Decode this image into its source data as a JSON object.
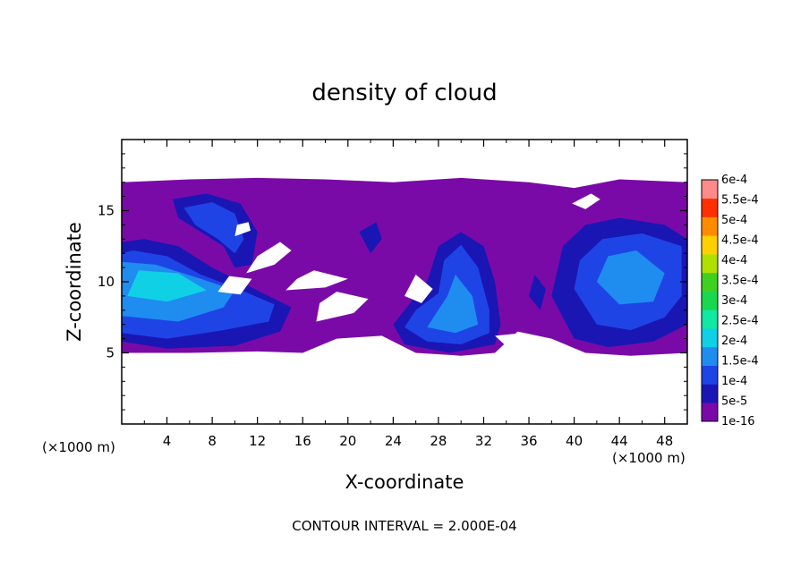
{
  "chart_data": {
    "type": "heatmap",
    "title": "density of cloud",
    "xlabel": "X-coordinate",
    "ylabel": "Z-coordinate",
    "x_unit": "(×1000 m)",
    "y_unit": "(×1000 m)",
    "xlim": [
      0,
      50
    ],
    "ylim": [
      0,
      20
    ],
    "x_ticks": [
      4,
      8,
      12,
      16,
      20,
      24,
      28,
      32,
      36,
      40,
      44,
      48
    ],
    "y_ticks": [
      5,
      10,
      15
    ],
    "grid": false,
    "contour_interval_text": "CONTOUR INTERVAL = 2.000E-04",
    "colorbar": {
      "placement": "right",
      "levels": [
        {
          "label": "1e-16",
          "color": "#7a0aa8"
        },
        {
          "label": "5e-5",
          "color": "#1a16b4"
        },
        {
          "label": "1e-4",
          "color": "#1f44e6"
        },
        {
          "label": "1.5e-4",
          "color": "#1f8cf0"
        },
        {
          "label": "2e-4",
          "color": "#10d0e6"
        },
        {
          "label": "2.5e-4",
          "color": "#10e8a4"
        },
        {
          "label": "3e-4",
          "color": "#18d850"
        },
        {
          "label": "3.5e-4",
          "color": "#40d020"
        },
        {
          "label": "4e-4",
          "color": "#b0e000"
        },
        {
          "label": "4.5e-4",
          "color": "#ffd000"
        },
        {
          "label": "5e-4",
          "color": "#ff8c00"
        },
        {
          "label": "5.5e-4",
          "color": "#ff3000"
        },
        {
          "label": "6e-4",
          "color": "#ff8a8a"
        }
      ]
    },
    "cloud_regions": [
      {
        "level": 0,
        "points": [
          [
            0,
            5
          ],
          [
            6,
            5
          ],
          [
            12,
            5.1
          ],
          [
            16,
            5
          ],
          [
            19,
            6
          ],
          [
            23,
            6.2
          ],
          [
            26,
            5
          ],
          [
            30,
            4.8
          ],
          [
            33,
            5
          ],
          [
            35,
            6.5
          ],
          [
            38,
            6
          ],
          [
            41,
            5
          ],
          [
            45,
            4.8
          ],
          [
            50,
            5
          ],
          [
            50,
            17
          ],
          [
            44,
            17.2
          ],
          [
            40,
            16.6
          ],
          [
            36,
            17
          ],
          [
            30,
            17.3
          ],
          [
            24,
            17
          ],
          [
            18,
            17.2
          ],
          [
            12,
            17.3
          ],
          [
            6,
            17.2
          ],
          [
            0,
            17
          ]
        ]
      },
      {
        "level": 1,
        "points": [
          [
            0,
            5.8
          ],
          [
            4,
            5.3
          ],
          [
            10,
            5.5
          ],
          [
            14,
            6.5
          ],
          [
            15,
            8.2
          ],
          [
            11,
            9.8
          ],
          [
            8,
            11
          ],
          [
            5,
            12.5
          ],
          [
            2,
            13
          ],
          [
            0,
            12.8
          ]
        ]
      },
      {
        "level": 2,
        "points": [
          [
            0,
            6.4
          ],
          [
            4,
            6
          ],
          [
            9,
            6.6
          ],
          [
            13,
            7.2
          ],
          [
            13.5,
            8.4
          ],
          [
            10,
            9.6
          ],
          [
            7,
            10.5
          ],
          [
            4,
            11.8
          ],
          [
            1,
            12.2
          ],
          [
            0,
            12
          ]
        ]
      },
      {
        "level": 3,
        "points": [
          [
            0,
            7.6
          ],
          [
            5,
            7.2
          ],
          [
            9,
            8.2
          ],
          [
            10,
            9.4
          ],
          [
            7,
            10.2
          ],
          [
            3,
            11.2
          ],
          [
            0,
            11.4
          ]
        ]
      },
      {
        "level": 4,
        "points": [
          [
            0.5,
            9
          ],
          [
            4,
            8.6
          ],
          [
            7.5,
            9.4
          ],
          [
            5,
            10.6
          ],
          [
            1.5,
            10.8
          ]
        ]
      },
      {
        "level": 1,
        "points": [
          [
            4.5,
            15.8
          ],
          [
            7.5,
            16.2
          ],
          [
            10.5,
            15.5
          ],
          [
            12,
            13.5
          ],
          [
            11.5,
            11.2
          ],
          [
            10,
            11
          ],
          [
            9,
            12.5
          ],
          [
            7,
            13.5
          ],
          [
            5,
            14.5
          ]
        ]
      },
      {
        "level": 2,
        "points": [
          [
            5.5,
            15.2
          ],
          [
            8,
            15.6
          ],
          [
            10,
            14.8
          ],
          [
            10.8,
            13
          ],
          [
            10,
            12
          ],
          [
            8.5,
            13
          ],
          [
            6.5,
            14
          ]
        ]
      },
      {
        "level": 1,
        "points": [
          [
            24,
            7
          ],
          [
            25,
            5.6
          ],
          [
            29,
            5
          ],
          [
            33,
            5.6
          ],
          [
            33.5,
            7
          ],
          [
            33,
            10
          ],
          [
            32,
            12.5
          ],
          [
            30,
            13.5
          ],
          [
            28,
            12.5
          ],
          [
            27,
            10
          ],
          [
            25,
            8
          ]
        ]
      },
      {
        "level": 2,
        "points": [
          [
            25,
            6.8
          ],
          [
            27,
            5.8
          ],
          [
            30,
            5.6
          ],
          [
            32.5,
            6.4
          ],
          [
            32.5,
            8
          ],
          [
            31.5,
            11
          ],
          [
            30,
            12.6
          ],
          [
            28.5,
            11.5
          ],
          [
            28,
            9.2
          ],
          [
            26,
            8
          ]
        ]
      },
      {
        "level": 3,
        "points": [
          [
            27,
            6.8
          ],
          [
            29.5,
            6.4
          ],
          [
            31.5,
            7
          ],
          [
            31,
            9
          ],
          [
            29.5,
            10.5
          ],
          [
            28.8,
            9
          ]
        ]
      },
      {
        "level": 1,
        "points": [
          [
            38,
            9
          ],
          [
            40,
            6
          ],
          [
            43,
            5.4
          ],
          [
            47,
            5.8
          ],
          [
            50,
            7
          ],
          [
            50,
            13
          ],
          [
            48,
            14
          ],
          [
            44,
            14.5
          ],
          [
            41,
            14
          ],
          [
            39,
            12.5
          ]
        ]
      },
      {
        "level": 2,
        "points": [
          [
            40,
            9.5
          ],
          [
            42,
            7
          ],
          [
            45,
            6.6
          ],
          [
            48,
            7.5
          ],
          [
            49.5,
            9
          ],
          [
            49.5,
            12.5
          ],
          [
            46,
            13.4
          ],
          [
            42.5,
            13
          ],
          [
            40.5,
            11.5
          ]
        ]
      },
      {
        "level": 3,
        "points": [
          [
            42,
            10
          ],
          [
            44,
            8.4
          ],
          [
            47,
            8.6
          ],
          [
            48,
            10.6
          ],
          [
            45.5,
            12.2
          ],
          [
            43,
            11.8
          ]
        ]
      },
      {
        "level": 1,
        "points": [
          [
            21,
            13.5
          ],
          [
            22,
            12
          ],
          [
            23,
            13
          ],
          [
            22.5,
            14.2
          ]
        ]
      },
      {
        "level": 1,
        "points": [
          [
            36,
            9
          ],
          [
            37,
            8
          ],
          [
            37.5,
            9.5
          ],
          [
            36.5,
            10.5
          ]
        ]
      }
    ],
    "clear_regions": [
      [
        [
          8.5,
          9.3
        ],
        [
          10.5,
          9.1
        ],
        [
          11.5,
          10.2
        ],
        [
          9.5,
          10.4
        ]
      ],
      [
        [
          11,
          10.6
        ],
        [
          13.5,
          11.2
        ],
        [
          15,
          12.2
        ],
        [
          14,
          12.8
        ],
        [
          12,
          11.8
        ]
      ],
      [
        [
          14.5,
          9.4
        ],
        [
          18,
          9.6
        ],
        [
          20,
          10.2
        ],
        [
          17,
          10.8
        ],
        [
          15.5,
          10.2
        ]
      ],
      [
        [
          17.2,
          7.2
        ],
        [
          20.5,
          7.8
        ],
        [
          21.8,
          8.8
        ],
        [
          19,
          9.3
        ],
        [
          17.5,
          8.5
        ]
      ],
      [
        [
          25,
          9
        ],
        [
          26.5,
          8.5
        ],
        [
          27.5,
          9.5
        ],
        [
          26,
          10.5
        ]
      ],
      [
        [
          33,
          6.2
        ],
        [
          35.5,
          6.4
        ],
        [
          36.4,
          5.3
        ],
        [
          34.5,
          5.1
        ]
      ],
      [
        [
          39.8,
          15.5
        ],
        [
          41.5,
          16.2
        ],
        [
          42.3,
          15.8
        ],
        [
          41,
          15.1
        ]
      ],
      [
        [
          10,
          13.2
        ],
        [
          11.4,
          13.6
        ],
        [
          11.2,
          14.2
        ],
        [
          10.2,
          14
        ]
      ]
    ]
  }
}
